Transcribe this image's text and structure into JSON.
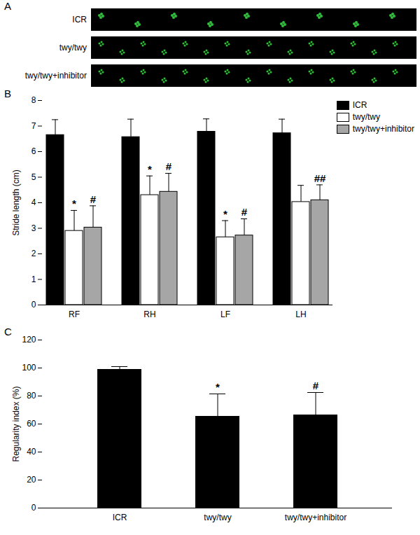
{
  "panel_a": {
    "label": "A",
    "rows": [
      "ICR",
      "twy/twy",
      "twy/twy+inhibitor"
    ]
  },
  "chart_data": [
    {
      "type": "bar",
      "title": "B",
      "ylabel": "Stride length (cm)",
      "categories": [
        "RF",
        "RH",
        "LF",
        "LH"
      ],
      "series": [
        {
          "name": "ICR",
          "color": "#000000",
          "values": [
            6.65,
            6.57,
            6.78,
            6.72
          ],
          "errors": [
            0.6,
            0.7,
            0.5,
            0.55
          ]
        },
        {
          "name": "twy/twy",
          "color": "#ffffff",
          "values": [
            2.9,
            4.3,
            2.65,
            4.03
          ],
          "errors": [
            0.8,
            0.75,
            0.65,
            0.65
          ],
          "annotations": [
            "*",
            "*",
            "*",
            null
          ]
        },
        {
          "name": "twy/twy+inhibitor",
          "color": "#a6a6a6",
          "values": [
            3.03,
            4.43,
            2.72,
            4.1
          ],
          "errors": [
            0.85,
            0.72,
            0.65,
            0.6
          ],
          "annotations": [
            "#",
            "#",
            "#",
            "##"
          ]
        }
      ],
      "ylim": [
        0,
        8
      ],
      "yticks": [
        0,
        1,
        2,
        3,
        4,
        5,
        6,
        7,
        8
      ],
      "legend": "top-right"
    },
    {
      "type": "bar",
      "title": "C",
      "ylabel": "Regularity index (%)",
      "categories": [
        "ICR",
        "twy/twy",
        "twy/twy+inhibitor"
      ],
      "values": [
        99,
        65.5,
        66.5
      ],
      "errors": [
        2,
        16,
        16
      ],
      "annotations": [
        null,
        "*",
        "#"
      ],
      "color": "#000000",
      "ylim": [
        0,
        120
      ],
      "yticks": [
        0,
        20,
        40,
        60,
        80,
        100,
        120
      ]
    }
  ]
}
